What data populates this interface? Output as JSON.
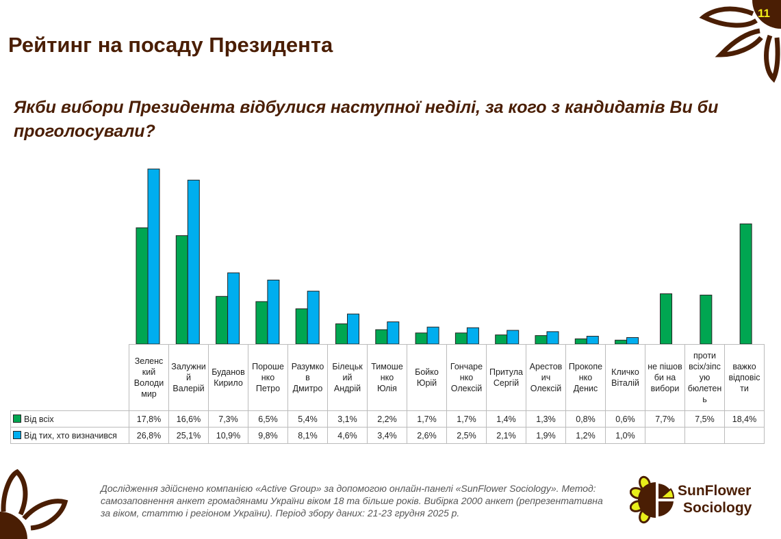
{
  "page_number": "11",
  "title": "Рейтинг на посаду Президента",
  "question": "Якби вибори Президента відбулися наступної неділі, за кого з кандидатів Ви би проголосували?",
  "colors": {
    "series1": "#00a651",
    "series2": "#00aeef",
    "brand": "#4a1e04",
    "accent": "#f5f018"
  },
  "chart_data": {
    "type": "bar",
    "title": "",
    "categories": [
      "Зеленський Володимир",
      "Залужний Валерій",
      "Буданов Кирило",
      "Порошенко Петро",
      "Разумков Дмитро",
      "Білецький Андрій",
      "Тимошенко Юлія",
      "Бойко Юрій",
      "Гончаренко Олексій",
      "Притула Сергій",
      "Арестович Олексій",
      "Прокопенко Денис",
      "Кличко Віталій",
      "не пішов би на вибори",
      "проти всіх/зіпсую бюлетень",
      "важко відповісти"
    ],
    "category_labels": [
      "Зеленс<br>кий<br>Володи<br>мир",
      "Залужни<br>й<br>Валерій",
      "Буданов<br>Кирило",
      "Пороше<br>нко<br>Петро",
      "Разумко<br>в<br>Дмитро",
      "Білецьк<br>ий<br>Андрій",
      "Тимоше<br>нко<br>Юлія",
      "Бойко<br>Юрій",
      "Гончаре<br>нко<br>Олексій",
      "Притула<br>Сергій",
      "Арестов<br>ич<br>Олексій",
      "Прокопе<br>нко<br>Денис",
      "Кличко<br>Віталій",
      "не пішов<br>би на<br>вибори",
      "проти<br>всіх/зіпс<br>ую<br>бюлетен<br>ь",
      "важко<br>відповіс<br>ти"
    ],
    "series": [
      {
        "name": "Від всіх",
        "values": [
          17.8,
          16.6,
          7.3,
          6.5,
          5.4,
          3.1,
          2.2,
          1.7,
          1.7,
          1.4,
          1.3,
          0.8,
          0.6,
          7.7,
          7.5,
          18.4
        ],
        "labels": [
          "17,8%",
          "16,6%",
          "7,3%",
          "6,5%",
          "5,4%",
          "3,1%",
          "2,2%",
          "1,7%",
          "1,7%",
          "1,4%",
          "1,3%",
          "0,8%",
          "0,6%",
          "7,7%",
          "7,5%",
          "18,4%"
        ]
      },
      {
        "name": "Від тих, хто визначився",
        "values": [
          26.8,
          25.1,
          10.9,
          9.8,
          8.1,
          4.6,
          3.4,
          2.6,
          2.5,
          2.1,
          1.9,
          1.2,
          1.0,
          null,
          null,
          null
        ],
        "labels": [
          "26,8%",
          "25,1%",
          "10,9%",
          "9,8%",
          "8,1%",
          "4,6%",
          "3,4%",
          "2,6%",
          "2,5%",
          "2,1%",
          "1,9%",
          "1,2%",
          "1,0%",
          "",
          "",
          ""
        ]
      }
    ],
    "unit": "%",
    "grid": false,
    "legend": "data-table"
  },
  "footer": "Дослідження здійснено компанією «Active Group» за допомогою онлайн-панелі «SunFlower Sociology». Метод: самозаповнення анкет громадянами України віком 18 та більше років. Вибірка 2000 анкет (репрезентативна за віком, статтю і регіоном України). Період збору даних: 21-23 грудня 2025 р.",
  "logo": {
    "line1": "SunFlower",
    "line2": "Sociology"
  }
}
